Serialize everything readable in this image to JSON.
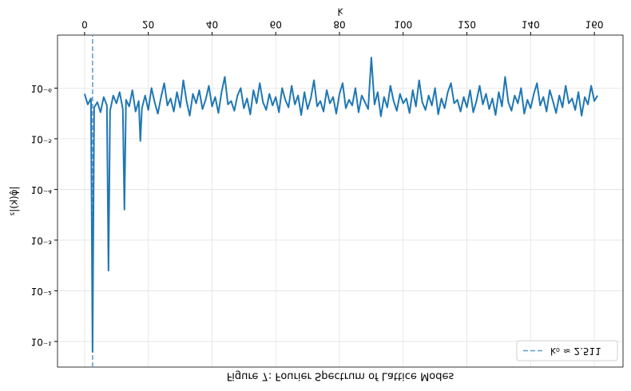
{
  "chart_data": {
    "type": "line",
    "title": "Figure 7: Fourier Spectrum of Lattice Modes",
    "x_label": "k",
    "y_label": "|φ̂(k)|²",
    "log_y": true,
    "grid": true,
    "legend": "upper right",
    "xlim": [
      -8.5,
      169
    ],
    "xticks": [
      0,
      20,
      40,
      60,
      80,
      100,
      120,
      140,
      160
    ],
    "ylim": [
      9e-08,
      0.32
    ],
    "yticks": [
      {
        "value": 1e-06,
        "label": "10⁻⁶"
      },
      {
        "value": 1e-05,
        "label": "10⁻⁵"
      },
      {
        "value": 0.0001,
        "label": "10⁻⁴"
      },
      {
        "value": 0.001,
        "label": "10⁻³"
      },
      {
        "value": 0.01,
        "label": "10⁻²"
      },
      {
        "value": 0.1,
        "label": "10⁻¹"
      }
    ],
    "vline": {
      "value": 2.511,
      "name": "k₀ ≈ 2.511",
      "color": "#5b9bd5"
    },
    "x": [
      0,
      1,
      2,
      2.5,
      3,
      4,
      5,
      6,
      7,
      7.5,
      8,
      9,
      10,
      11,
      12,
      12.5,
      13,
      14,
      15,
      16,
      17,
      17.5,
      18,
      19,
      20,
      21,
      22,
      23,
      24,
      25,
      26,
      27,
      28,
      29,
      30,
      31,
      32,
      33,
      34,
      35,
      36,
      37,
      38,
      39,
      40,
      41,
      42,
      43,
      44,
      45,
      46,
      47,
      48,
      49,
      50,
      51,
      52,
      53,
      54,
      55,
      56,
      57,
      58,
      59,
      60,
      61,
      62,
      63,
      64,
      65,
      66,
      67,
      68,
      69,
      70,
      71,
      72,
      73,
      74,
      75,
      76,
      77,
      78,
      79,
      80,
      81,
      82,
      83,
      84,
      85,
      86,
      87,
      88,
      89,
      90,
      91,
      92,
      93,
      94,
      95,
      96,
      97,
      98,
      99,
      100,
      101,
      102,
      103,
      104,
      105,
      106,
      107,
      108,
      109,
      110,
      111,
      112,
      113,
      114,
      115,
      116,
      117,
      118,
      119,
      120,
      121,
      122,
      123,
      124,
      125,
      126,
      127,
      128,
      129,
      130,
      131,
      132,
      133,
      134,
      135,
      136,
      137,
      138,
      139,
      140,
      141,
      142,
      143,
      144,
      145,
      146,
      147,
      148,
      149,
      150,
      151,
      152,
      153,
      154,
      155,
      156,
      157,
      158,
      159,
      160,
      161
    ],
    "series": [
      {
        "color": "#1f77b4",
        "values": [
          1.3e-06,
          2.1e-06,
          1.6e-06,
          0.16,
          2.4e-06,
          1.9e-06,
          3e-06,
          1.5e-06,
          2.2e-06,
          0.004,
          2.8e-06,
          1.4e-06,
          2e-06,
          1.2e-06,
          2.6e-06,
          0.00025,
          1.7e-06,
          2.3e-06,
          1.1e-06,
          2.9e-06,
          1.8e-06,
          1.1e-05,
          2.5e-06,
          1.4e-06,
          2.7e-06,
          1e-06,
          1.9e-06,
          3.2e-06,
          1.5e-06,
          8e-07,
          2.2e-06,
          1.6e-06,
          2.9e-06,
          1.2e-06,
          2.4e-06,
          7e-07,
          1.8e-06,
          3.5e-06,
          1.3e-06,
          2e-06,
          1.1e-06,
          2.6e-06,
          1.7e-06,
          9e-07,
          2.3e-06,
          1.5e-06,
          3.1e-06,
          1.2e-06,
          6e-07,
          2.1e-06,
          1.8e-06,
          2.8e-06,
          1.4e-06,
          1e-06,
          2.5e-06,
          1.6e-06,
          3.3e-06,
          1.1e-06,
          2e-06,
          8e-07,
          1.9e-06,
          2.7e-06,
          1.3e-06,
          2.2e-06,
          1.5e-06,
          3e-06,
          1e-06,
          1.7e-06,
          2.4e-06,
          9e-07,
          2.1e-06,
          1.4e-06,
          3.4e-06,
          1.2e-06,
          2.6e-06,
          1.6e-06,
          7e-07,
          2.3e-06,
          1.8e-06,
          2.9e-06,
          1.1e-06,
          2e-06,
          1.5e-06,
          3.2e-06,
          1.3e-06,
          8e-07,
          2.5e-06,
          1.7e-06,
          2.2e-06,
          1e-06,
          3e-06,
          1.4e-06,
          1.9e-06,
          2.6e-06,
          2.5e-07,
          2.1e-06,
          1.2e-06,
          3.6e-06,
          1.5e-06,
          2.4e-06,
          9e-07,
          1.8e-06,
          2.8e-06,
          1.3e-06,
          2e-06,
          1.6e-06,
          3.1e-06,
          1.1e-06,
          2.3e-06,
          7e-07,
          1.9e-06,
          2.7e-06,
          1.4e-06,
          2.2e-06,
          1e-06,
          3.3e-06,
          1.6e-06,
          2.5e-06,
          1.2e-06,
          8e-07,
          2e-06,
          1.7e-06,
          2.9e-06,
          1.5e-06,
          2.4e-06,
          1.1e-06,
          3e-06,
          1.8e-06,
          9e-07,
          2.1e-06,
          1.3e-06,
          2.6e-06,
          1.6e-06,
          3.4e-06,
          1.2e-06,
          2.3e-06,
          6e-07,
          1.9e-06,
          2.8e-06,
          1.4e-06,
          2e-06,
          1e-06,
          3.2e-06,
          1.7e-06,
          2.5e-06,
          1.3e-06,
          8e-07,
          2.2e-06,
          1.5e-06,
          2.9e-06,
          1.1e-06,
          1.8e-06,
          3.1e-06,
          1.4e-06,
          2.4e-06,
          9e-07,
          2e-06,
          1.6e-06,
          2.7e-06,
          1.2e-06,
          3.5e-06,
          1.5e-06,
          2.1e-06,
          9e-07,
          1.8e-06,
          1.4e-06
        ]
      }
    ]
  }
}
